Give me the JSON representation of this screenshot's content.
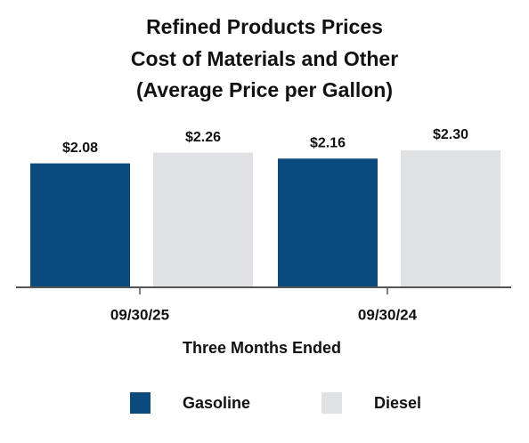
{
  "chart_data": {
    "type": "bar",
    "title": [
      "Refined Products Prices",
      "Cost of Materials and Other",
      "(Average Price per Gallon)"
    ],
    "x_label": "Three Months Ended",
    "categories": [
      "09/30/25",
      "09/30/24"
    ],
    "series": [
      {
        "name": "Gasoline",
        "color": "#0b4a7d",
        "values": [
          2.08,
          2.16
        ],
        "value_labels": [
          "$2.08",
          "$2.16"
        ]
      },
      {
        "name": "Diesel",
        "color": "#e0e1e5",
        "values": [
          2.26,
          2.3
        ],
        "value_labels": [
          "$2.26",
          "$2.30"
        ]
      }
    ],
    "ylim": [
      0,
      2.5
    ],
    "legend": "bottom"
  }
}
